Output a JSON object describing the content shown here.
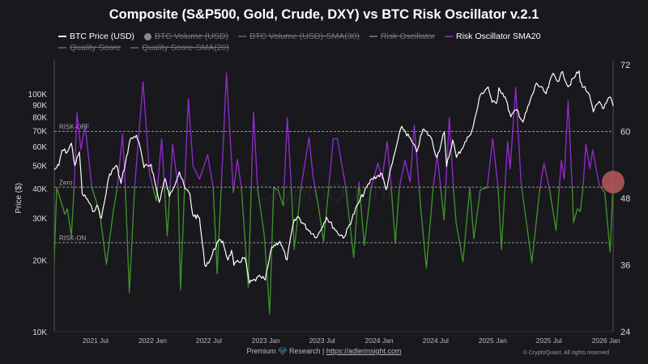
{
  "title": "Composite (S&P500, Gold, Crude, DXY) vs BTC Risk Oscillator v.2.1",
  "legend": [
    {
      "label": "BTC Price (USD)",
      "marker": "line",
      "color": "#ffffff",
      "enabled": true
    },
    {
      "label": "BTC Volume (USD)",
      "marker": "dot",
      "color": "#888888",
      "enabled": false
    },
    {
      "label": "BTC Volume (USD)-SMA(30)",
      "marker": "line",
      "color": "#555555",
      "enabled": false
    },
    {
      "label": "Risk Oscillator",
      "marker": "line",
      "color": "#666666",
      "enabled": false
    },
    {
      "label": "Risk Oscillator SMA20",
      "marker": "line",
      "color": "#7a2a9a",
      "enabled": true
    },
    {
      "label": "Quality Score",
      "marker": "line",
      "color": "#555555",
      "enabled": false
    },
    {
      "label": "Quality Score-SMA(20)",
      "marker": "line",
      "color": "#555555",
      "enabled": false
    }
  ],
  "footer": {
    "prefix": "Premium",
    "icon": "diamond-icon",
    "middle": "Research |",
    "link": "https://adlerinsight.com",
    "copyright": "© CryptoQuant. All rights reserved"
  },
  "watermark": "CryptoQuant",
  "chart_data": {
    "type": "line",
    "title": "Composite (S&P500, Gold, Crude, DXY) vs BTC Risk Oscillator v.2.1",
    "xlabel": "",
    "ylabel": "Price ($)",
    "x_range": [
      "2021-02-18",
      "2026-01-24"
    ],
    "x_ticks": [
      [
        "2021-07-01",
        "2021 Jul"
      ],
      [
        "2022-01-01",
        "2022 Jan"
      ],
      [
        "2022-07-01",
        "2022 Jul"
      ],
      [
        "2023-01-01",
        "2023 Jan"
      ],
      [
        "2023-07-01",
        "2023 Jul"
      ],
      [
        "2024-01-01",
        "2024 Jan"
      ],
      [
        "2024-07-01",
        "2024 Jul"
      ],
      [
        "2025-01-01",
        "2025 Jan"
      ],
      [
        "2025-07-01",
        "2025 Jul"
      ],
      [
        "2026-01-01",
        "2026 Jan"
      ]
    ],
    "y_left": {
      "scale": "log",
      "range": [
        10000,
        180000
      ],
      "ticks": [
        [
          10000,
          "10K"
        ],
        [
          20000,
          "20K"
        ],
        [
          30000,
          "30K"
        ],
        [
          40000,
          "40K"
        ],
        [
          50000,
          "50K"
        ],
        [
          60000,
          "60K"
        ],
        [
          70000,
          "70K"
        ],
        [
          80000,
          "80K"
        ],
        [
          90000,
          "90K"
        ],
        [
          100000,
          "100K"
        ]
      ]
    },
    "y_right": {
      "scale": "linear",
      "range": [
        24,
        72
      ],
      "ticks": [
        24,
        36,
        48,
        60,
        72
      ]
    },
    "reference_lines": [
      {
        "label": "RISK-OFF",
        "value": 60
      },
      {
        "label": "Zero",
        "value": 50
      },
      {
        "label": "RISK-ON",
        "value": 40
      }
    ],
    "colors": {
      "btc": "#ffffff",
      "osc_above": "#8e2bc4",
      "osc_below": "#3f8f2a",
      "marker": "#b85a5a"
    },
    "latest_marker": {
      "date": "2026-01-24",
      "value": 50.9
    },
    "grid": false,
    "legend_placement": "top",
    "series": [
      {
        "name": "BTC Price (USD)",
        "axis": "left",
        "points": [
          [
            "2021-02-18",
            48000
          ],
          [
            "2021-03-05",
            50000
          ],
          [
            "2021-03-15",
            58000
          ],
          [
            "2021-04-01",
            57000
          ],
          [
            "2021-04-14",
            62000
          ],
          [
            "2021-04-25",
            50000
          ],
          [
            "2021-05-10",
            57000
          ],
          [
            "2021-05-19",
            38000
          ],
          [
            "2021-06-05",
            36000
          ],
          [
            "2021-06-22",
            32000
          ],
          [
            "2021-07-05",
            34000
          ],
          [
            "2021-07-20",
            30000
          ],
          [
            "2021-08-15",
            46000
          ],
          [
            "2021-09-07",
            50000
          ],
          [
            "2021-09-21",
            42000
          ],
          [
            "2021-10-05",
            51000
          ],
          [
            "2021-10-20",
            64000
          ],
          [
            "2021-11-10",
            67000
          ],
          [
            "2021-11-25",
            57000
          ],
          [
            "2021-12-04",
            49000
          ],
          [
            "2021-12-27",
            50500
          ],
          [
            "2022-01-10",
            41500
          ],
          [
            "2022-01-22",
            35000
          ],
          [
            "2022-02-10",
            44000
          ],
          [
            "2022-02-24",
            37000
          ],
          [
            "2022-03-28",
            47000
          ],
          [
            "2022-04-15",
            40000
          ],
          [
            "2022-05-01",
            38000
          ],
          [
            "2022-05-10",
            31000
          ],
          [
            "2022-06-01",
            30000
          ],
          [
            "2022-06-18",
            19000
          ],
          [
            "2022-07-05",
            20000
          ],
          [
            "2022-07-28",
            23800
          ],
          [
            "2022-08-15",
            24000
          ],
          [
            "2022-09-01",
            20000
          ],
          [
            "2022-09-12",
            22000
          ],
          [
            "2022-09-20",
            19000
          ],
          [
            "2022-10-25",
            20500
          ],
          [
            "2022-11-09",
            16000
          ],
          [
            "2022-12-15",
            17000
          ],
          [
            "2022-12-30",
            16500
          ],
          [
            "2023-01-20",
            22700
          ],
          [
            "2023-02-15",
            24000
          ],
          [
            "2023-03-10",
            20000
          ],
          [
            "2023-03-30",
            28500
          ],
          [
            "2023-04-14",
            30500
          ],
          [
            "2023-05-15",
            27000
          ],
          [
            "2023-06-15",
            25000
          ],
          [
            "2023-07-15",
            30300
          ],
          [
            "2023-08-20",
            26000
          ],
          [
            "2023-09-11",
            25000
          ],
          [
            "2023-10-25",
            34500
          ],
          [
            "2023-12-08",
            44000
          ],
          [
            "2024-01-10",
            46000
          ],
          [
            "2024-01-23",
            39500
          ],
          [
            "2024-02-28",
            62000
          ],
          [
            "2024-03-14",
            73000
          ],
          [
            "2024-04-15",
            63000
          ],
          [
            "2024-05-01",
            57000
          ],
          [
            "2024-05-21",
            71000
          ],
          [
            "2024-06-15",
            66000
          ],
          [
            "2024-07-05",
            54000
          ],
          [
            "2024-07-29",
            69000
          ],
          [
            "2024-08-05",
            49500
          ],
          [
            "2024-08-25",
            64000
          ],
          [
            "2024-09-06",
            54000
          ],
          [
            "2024-10-15",
            66000
          ],
          [
            "2024-10-29",
            72000
          ],
          [
            "2024-11-22",
            99000
          ],
          [
            "2024-12-17",
            107000
          ],
          [
            "2024-12-30",
            92000
          ],
          [
            "2025-01-13",
            91000
          ],
          [
            "2025-01-21",
            106000
          ],
          [
            "2025-02-10",
            97000
          ],
          [
            "2025-02-28",
            80000
          ],
          [
            "2025-03-20",
            86000
          ],
          [
            "2025-04-08",
            76000
          ],
          [
            "2025-05-22",
            111000
          ],
          [
            "2025-06-22",
            100000
          ],
          [
            "2025-07-14",
            122000
          ],
          [
            "2025-08-02",
            113000
          ],
          [
            "2025-08-14",
            124000
          ],
          [
            "2025-09-01",
            107000
          ],
          [
            "2025-09-20",
            117000
          ],
          [
            "2025-10-06",
            125000
          ],
          [
            "2025-10-10",
            112000
          ],
          [
            "2025-11-05",
            101000
          ],
          [
            "2025-11-21",
            84000
          ],
          [
            "2025-12-10",
            93000
          ],
          [
            "2025-12-25",
            87000
          ],
          [
            "2026-01-14",
            97000
          ],
          [
            "2026-01-24",
            89000
          ]
        ]
      },
      {
        "name": "Risk Oscillator SMA20",
        "axis": "right",
        "points": [
          [
            "2021-02-17",
            35.9
          ],
          [
            "2021-02-26",
            49.9
          ],
          [
            "2021-03-24",
            45.1
          ],
          [
            "2021-04-01",
            46.1
          ],
          [
            "2021-04-14",
            41.2
          ],
          [
            "2021-04-23",
            49.9
          ],
          [
            "2021-05-02",
            63.3
          ],
          [
            "2021-05-15",
            56.7
          ],
          [
            "2021-05-28",
            61.3
          ],
          [
            "2021-06-19",
            49.9
          ],
          [
            "2021-07-14",
            45.6
          ],
          [
            "2021-08-05",
            36.1
          ],
          [
            "2021-08-27",
            45.6
          ],
          [
            "2021-09-09",
            49.9
          ],
          [
            "2021-09-26",
            59.6
          ],
          [
            "2021-10-05",
            49.9
          ],
          [
            "2021-10-18",
            31.0
          ],
          [
            "2021-11-04",
            49.9
          ],
          [
            "2021-12-01",
            68.9
          ],
          [
            "2021-12-22",
            52.4
          ],
          [
            "2022-01-13",
            47.5
          ],
          [
            "2022-01-30",
            58.7
          ],
          [
            "2022-02-17",
            41.2
          ],
          [
            "2022-03-06",
            57.7
          ],
          [
            "2022-03-24",
            49.9
          ],
          [
            "2022-04-01",
            31.5
          ],
          [
            "2022-04-14",
            49.9
          ],
          [
            "2022-04-26",
            65.9
          ],
          [
            "2022-05-11",
            53.8
          ],
          [
            "2022-06-01",
            51.4
          ],
          [
            "2022-06-27",
            55.8
          ],
          [
            "2022-07-15",
            49.9
          ],
          [
            "2022-07-28",
            34.4
          ],
          [
            "2022-08-10",
            49.9
          ],
          [
            "2022-08-27",
            70.5
          ],
          [
            "2022-09-18",
            49.0
          ],
          [
            "2022-10-01",
            55.0
          ],
          [
            "2022-10-14",
            49.9
          ],
          [
            "2022-11-05",
            32.0
          ],
          [
            "2022-11-22",
            63.5
          ],
          [
            "2022-12-05",
            49.9
          ],
          [
            "2022-12-27",
            41.2
          ],
          [
            "2023-01-13",
            27.2
          ],
          [
            "2023-01-26",
            49.9
          ],
          [
            "2023-02-09",
            49.5
          ],
          [
            "2023-02-26",
            46.6
          ],
          [
            "2023-03-11",
            62.5
          ],
          [
            "2023-03-24",
            49.9
          ],
          [
            "2023-04-02",
            38.8
          ],
          [
            "2023-04-24",
            49.9
          ],
          [
            "2023-05-20",
            58.9
          ],
          [
            "2023-06-02",
            51.9
          ],
          [
            "2023-06-19",
            46.6
          ],
          [
            "2023-07-06",
            40.2
          ],
          [
            "2023-08-02",
            56.2
          ],
          [
            "2023-08-06",
            58.7
          ],
          [
            "2023-08-19",
            58.7
          ],
          [
            "2023-09-14",
            50.4
          ],
          [
            "2023-10-11",
            37.3
          ],
          [
            "2023-10-28",
            50.9
          ],
          [
            "2023-11-14",
            39.5
          ],
          [
            "2023-12-06",
            49.9
          ],
          [
            "2023-12-28",
            54.3
          ],
          [
            "2024-01-10",
            51.4
          ],
          [
            "2024-01-27",
            58.2
          ],
          [
            "2024-02-09",
            49.9
          ],
          [
            "2024-02-22",
            39.8
          ],
          [
            "2024-03-06",
            49.9
          ],
          [
            "2024-03-24",
            54.8
          ],
          [
            "2024-04-10",
            50.9
          ],
          [
            "2024-04-23",
            61.1
          ],
          [
            "2024-05-15",
            45.6
          ],
          [
            "2024-06-01",
            35.4
          ],
          [
            "2024-06-23",
            49.9
          ],
          [
            "2024-07-06",
            55.8
          ],
          [
            "2024-07-28",
            44.1
          ],
          [
            "2024-08-14",
            62.5
          ],
          [
            "2024-08-27",
            49.9
          ],
          [
            "2024-09-05",
            43.6
          ],
          [
            "2024-09-27",
            36.6
          ],
          [
            "2024-10-19",
            49.9
          ],
          [
            "2024-11-01",
            40.7
          ],
          [
            "2024-11-22",
            49.5
          ],
          [
            "2024-12-14",
            49.9
          ],
          [
            "2025-01-01",
            58.7
          ],
          [
            "2025-01-18",
            49.9
          ],
          [
            "2025-01-29",
            38.8
          ],
          [
            "2025-02-18",
            58.2
          ],
          [
            "2025-02-26",
            53.3
          ],
          [
            "2025-03-16",
            67.9
          ],
          [
            "2025-04-02",
            50.9
          ],
          [
            "2025-05-07",
            36.4
          ],
          [
            "2025-06-02",
            49.9
          ],
          [
            "2025-06-15",
            54.3
          ],
          [
            "2025-07-02",
            49.9
          ],
          [
            "2025-07-24",
            42.2
          ],
          [
            "2025-08-10",
            54.8
          ],
          [
            "2025-08-19",
            51.4
          ],
          [
            "2025-09-01",
            65.5
          ],
          [
            "2025-09-14",
            49.9
          ],
          [
            "2025-09-18",
            43.6
          ],
          [
            "2025-10-01",
            46.1
          ],
          [
            "2025-10-10",
            45.6
          ],
          [
            "2025-10-19",
            49.9
          ],
          [
            "2025-10-28",
            57.7
          ],
          [
            "2025-11-10",
            53.3
          ],
          [
            "2025-11-19",
            56.7
          ],
          [
            "2025-12-10",
            50.4
          ],
          [
            "2025-12-28",
            49.0
          ],
          [
            "2026-01-14",
            38.3
          ],
          [
            "2026-01-24",
            50.9
          ]
        ]
      }
    ]
  }
}
